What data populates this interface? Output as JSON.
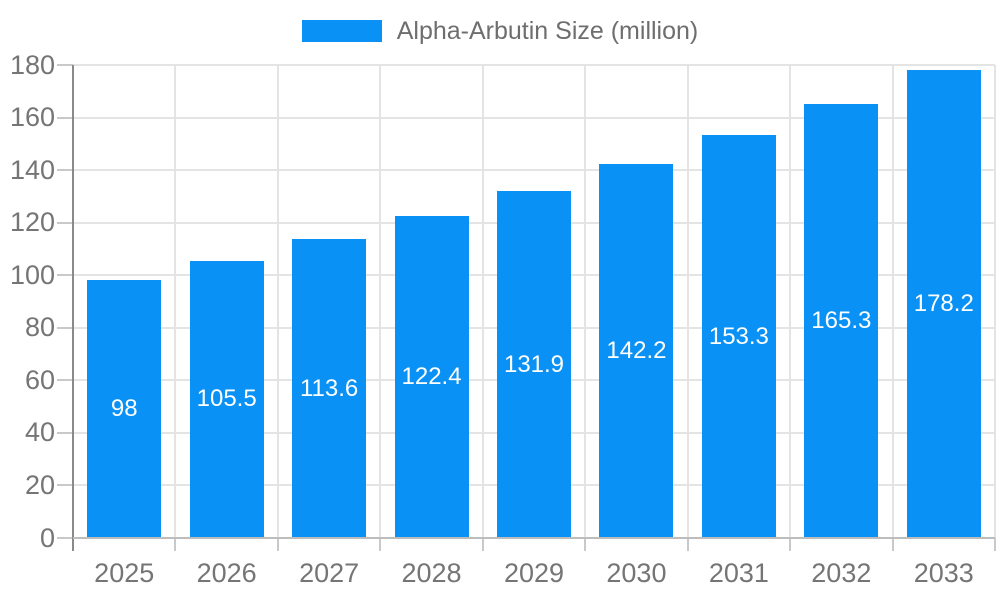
{
  "legend": {
    "series_label": "Alpha-Arbutin Size (million)",
    "swatch_color": "#0a91f5"
  },
  "chart_data": {
    "type": "bar",
    "title": "Alpha-Arbutin Size (million)",
    "categories": [
      "2025",
      "2026",
      "2027",
      "2028",
      "2029",
      "2030",
      "2031",
      "2032",
      "2033"
    ],
    "series": [
      {
        "name": "Alpha-Arbutin Size (million)",
        "values": [
          98,
          105.5,
          113.6,
          122.4,
          131.9,
          142.2,
          153.3,
          165.3,
          178.2
        ]
      }
    ],
    "value_labels": [
      "98",
      "105.5",
      "113.6",
      "122.4",
      "131.9",
      "142.2",
      "153.3",
      "165.3",
      "178.2"
    ],
    "xlabel": "",
    "ylabel": "",
    "ylim": [
      0,
      180
    ],
    "ytick_labels": [
      "0",
      "20",
      "40",
      "60",
      "80",
      "100",
      "120",
      "140",
      "160",
      "180"
    ],
    "grid": true,
    "legend_position": "top-center",
    "colors": {
      "bar": "#0a91f5",
      "value_label": "#ffffff",
      "axis_text": "#757575",
      "gridline": "#e4e4e4",
      "x_axis_line": "#bdbdbd",
      "y_axis_line": "#8a8a8a"
    }
  }
}
